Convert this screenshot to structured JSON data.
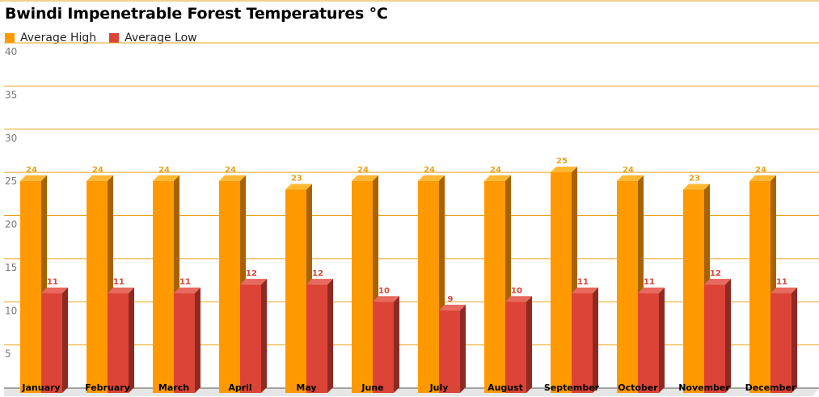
{
  "chart_data": {
    "type": "bar",
    "title": "Bwindi Impenetrable Forest Temperatures °C",
    "categories": [
      "January",
      "February",
      "March",
      "April",
      "May",
      "June",
      "July",
      "August",
      "September",
      "October",
      "November",
      "December"
    ],
    "series": [
      {
        "name": "Average High",
        "color": "#ff9900",
        "side_color": "#a86300",
        "top_color": "#ffb732",
        "label_color": "#e8a21c",
        "values": [
          24,
          24,
          24,
          24,
          23,
          24,
          24,
          24,
          25,
          24,
          23,
          24
        ]
      },
      {
        "name": "Average Low",
        "color": "#dc4437",
        "side_color": "#8e2a22",
        "top_color": "#e86a5f",
        "label_color": "#dc4437",
        "values": [
          11,
          11,
          11,
          12,
          12,
          10,
          9,
          10,
          11,
          11,
          12,
          11
        ]
      }
    ],
    "ylim": [
      0,
      40
    ],
    "yticks": [
      5,
      10,
      15,
      20,
      25,
      30,
      35,
      40
    ],
    "grid": true,
    "grid_color": "#e8a21c",
    "legend_position": "top-left",
    "xlabel": "",
    "ylabel": ""
  }
}
